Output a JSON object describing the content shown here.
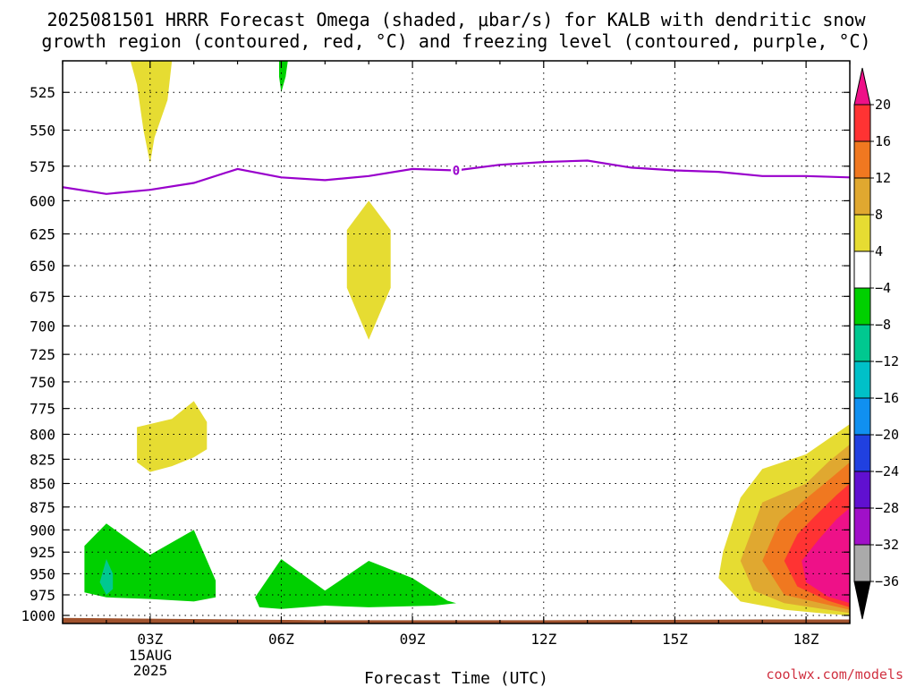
{
  "title": {
    "line1": "2025081501 HRRR Forecast Omega (shaded, μbar/s) for KALB with dendritic snow",
    "line2": "growth region (contoured, red, °C) and freezing level (contoured, purple, °C)"
  },
  "credit": "coolwx.com/models",
  "chart_data": {
    "type": "time-height cross section",
    "xlabel": "Forecast Time (UTC)",
    "x_range_hours": [
      1,
      19
    ],
    "x_ticks": [
      {
        "hour": 3,
        "label": "03Z"
      },
      {
        "hour": 6,
        "label": "06Z"
      },
      {
        "hour": 9,
        "label": "09Z"
      },
      {
        "hour": 12,
        "label": "12Z"
      },
      {
        "hour": 15,
        "label": "15Z"
      },
      {
        "hour": 18,
        "label": "18Z"
      }
    ],
    "date_label": [
      "15AUG",
      "2025"
    ],
    "y_axis_scale": "log-pressure, inverted",
    "y_range_mb": [
      505,
      1010
    ],
    "y_ticks": [
      525,
      550,
      575,
      600,
      625,
      650,
      675,
      700,
      725,
      750,
      775,
      800,
      825,
      850,
      875,
      900,
      925,
      950,
      975,
      1000
    ],
    "grid": "dotted",
    "colorbar": {
      "labels": [
        "20",
        "16",
        "12",
        "8",
        "4",
        "−4",
        "−8",
        "−12",
        "−16",
        "−20",
        "−24",
        "−28",
        "−32",
        "−36"
      ],
      "colors": [
        "#ee1188",
        "#ff3333",
        "#f07820",
        "#e0a830",
        "#e6dc32",
        "#ffffff",
        "#00d000",
        "#00c890",
        "#00c0c8",
        "#1090f0",
        "#2040e0",
        "#6010d0",
        "#a010c8",
        "#aaaaaa",
        "#000000"
      ]
    },
    "freezing_level": {
      "label": "0",
      "label_hour": 10.0,
      "color": "#9900cc",
      "points": [
        [
          1.0,
          590
        ],
        [
          2.0,
          595
        ],
        [
          3.0,
          592
        ],
        [
          4.0,
          587
        ],
        [
          5.0,
          577
        ],
        [
          6.0,
          583
        ],
        [
          7.0,
          585
        ],
        [
          8.0,
          582
        ],
        [
          9.0,
          577
        ],
        [
          10.0,
          578
        ],
        [
          11.0,
          574
        ],
        [
          12.0,
          572
        ],
        [
          13.0,
          571
        ],
        [
          14.0,
          576
        ],
        [
          15.0,
          578
        ],
        [
          16.0,
          579
        ],
        [
          17.0,
          582
        ],
        [
          18.0,
          582
        ],
        [
          19.0,
          583
        ]
      ]
    },
    "omega_regions": [
      {
        "value_band": "4 to 8",
        "color": "#e6dc32",
        "points": [
          [
            2.55,
            505
          ],
          [
            3.5,
            505
          ],
          [
            3.4,
            530
          ],
          [
            3.1,
            555
          ],
          [
            3.0,
            573
          ],
          [
            2.85,
            550
          ],
          [
            2.7,
            520
          ]
        ]
      },
      {
        "value_band": "-4 to -8",
        "color": "#00d000",
        "points": [
          [
            5.95,
            505
          ],
          [
            6.15,
            505
          ],
          [
            6.1,
            515
          ],
          [
            6.0,
            525
          ],
          [
            5.95,
            515
          ]
        ]
      },
      {
        "value_band": "4 to 8",
        "color": "#e6dc32",
        "points": [
          [
            8.0,
            600
          ],
          [
            8.5,
            622
          ],
          [
            8.5,
            668
          ],
          [
            8.0,
            712
          ],
          [
            7.5,
            668
          ],
          [
            7.5,
            622
          ]
        ]
      },
      {
        "value_band": "4 to 8",
        "color": "#e6dc32",
        "points": [
          [
            2.7,
            793
          ],
          [
            3.5,
            785
          ],
          [
            4.0,
            768
          ],
          [
            4.3,
            788
          ],
          [
            4.3,
            815
          ],
          [
            4.0,
            823
          ],
          [
            3.5,
            832
          ],
          [
            3.0,
            838
          ],
          [
            2.7,
            828
          ]
        ]
      },
      {
        "value_band": "-4 to -8",
        "color": "#00d000",
        "points": [
          [
            1.5,
            918
          ],
          [
            2.0,
            893
          ],
          [
            3.0,
            928
          ],
          [
            4.0,
            900
          ],
          [
            4.5,
            958
          ],
          [
            4.5,
            978
          ],
          [
            4.0,
            983
          ],
          [
            3.0,
            980
          ],
          [
            2.0,
            978
          ],
          [
            1.5,
            972
          ]
        ]
      },
      {
        "value_band": "-8 to -12",
        "color": "#00c890",
        "points": [
          [
            2.0,
            933
          ],
          [
            2.15,
            950
          ],
          [
            2.15,
            968
          ],
          [
            2.0,
            975
          ],
          [
            1.85,
            960
          ]
        ]
      },
      {
        "value_band": "-4 to -8",
        "color": "#00d000",
        "points": [
          [
            5.4,
            978
          ],
          [
            6.0,
            933
          ],
          [
            7.0,
            970
          ],
          [
            8.0,
            935
          ],
          [
            9.0,
            955
          ],
          [
            9.8,
            982
          ],
          [
            10.0,
            985
          ],
          [
            9.5,
            988
          ],
          [
            8.0,
            990
          ],
          [
            7.0,
            988
          ],
          [
            6.0,
            992
          ],
          [
            5.5,
            990
          ]
        ]
      },
      {
        "value_band": "4 to 8",
        "color": "#e6dc32",
        "points": [
          [
            16.1,
            925
          ],
          [
            16.5,
            865
          ],
          [
            17.0,
            835
          ],
          [
            18.0,
            820
          ],
          [
            19.0,
            790
          ],
          [
            19.0,
            1000
          ],
          [
            18.5,
            998
          ],
          [
            17.5,
            993
          ],
          [
            16.5,
            983
          ],
          [
            16.0,
            955
          ]
        ]
      },
      {
        "value_band": "8 to 12",
        "color": "#e0a830",
        "points": [
          [
            16.5,
            935
          ],
          [
            17.0,
            870
          ],
          [
            17.5,
            860
          ],
          [
            18.0,
            850
          ],
          [
            18.5,
            828
          ],
          [
            19.0,
            810
          ],
          [
            19.0,
            997
          ],
          [
            18.5,
            993
          ],
          [
            17.5,
            985
          ],
          [
            16.8,
            970
          ]
        ]
      },
      {
        "value_band": "12 to 16",
        "color": "#f07820",
        "points": [
          [
            17.0,
            935
          ],
          [
            17.4,
            890
          ],
          [
            18.0,
            866
          ],
          [
            18.5,
            847
          ],
          [
            19.0,
            828
          ],
          [
            19.0,
            993
          ],
          [
            18.5,
            987
          ],
          [
            17.5,
            975
          ]
        ]
      },
      {
        "value_band": "16 to 20",
        "color": "#ff3333",
        "points": [
          [
            17.5,
            935
          ],
          [
            17.8,
            905
          ],
          [
            18.2,
            885
          ],
          [
            18.7,
            862
          ],
          [
            19.0,
            850
          ],
          [
            19.0,
            990
          ],
          [
            18.5,
            982
          ],
          [
            17.8,
            965
          ]
        ]
      },
      {
        "value_band": "> 20",
        "color": "#ee1188",
        "points": [
          [
            17.9,
            935
          ],
          [
            18.3,
            910
          ],
          [
            18.7,
            888
          ],
          [
            19.0,
            876
          ],
          [
            19.0,
            985
          ],
          [
            18.5,
            977
          ],
          [
            18.0,
            960
          ]
        ]
      }
    ],
    "terrain": {
      "color": "#a0522d",
      "surface_pressure": [
        [
          1.0,
          1003
        ],
        [
          3.0,
          1004
        ],
        [
          5.0,
          1005
        ],
        [
          7.0,
          1006
        ],
        [
          12.0,
          1006
        ],
        [
          17.0,
          1005
        ],
        [
          19.0,
          1005
        ]
      ]
    }
  }
}
